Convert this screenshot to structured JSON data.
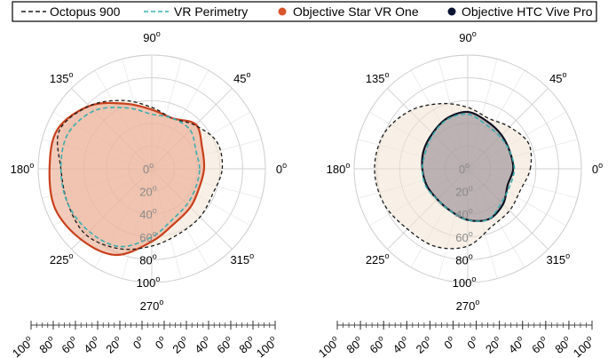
{
  "legend": {
    "items": [
      {
        "label": "Octopus 900",
        "style": "dashed",
        "color": "#1a1a1a"
      },
      {
        "label": "VR Perimetry",
        "style": "dashed",
        "color": "#3aaeb0"
      },
      {
        "label": "Objective Star VR One",
        "style": "dot",
        "color": "#d9552b"
      },
      {
        "label": "Objective HTC Vive Pro",
        "style": "dot",
        "color": "#0b1333"
      }
    ]
  },
  "colors": {
    "octopus": "#1a1a1a",
    "vr_perimetry": "#3aaeb0",
    "star_vr": "#c8401c",
    "star_vr_fill": "#e9a184",
    "htc": "#111122",
    "htc_fill": "#8a7f88",
    "octopus_fill": "#f3e4d3"
  },
  "chart_data": [
    {
      "type": "polar-area",
      "angle_labels": [
        "0",
        "45",
        "90",
        "135",
        "180",
        "225",
        "270",
        "315"
      ],
      "angle_unit_symbol": "o",
      "ring_labels": [
        "0",
        "20",
        "40",
        "60",
        "80",
        "100"
      ],
      "ring_unit_symbol": "o",
      "r_max": 100,
      "angles_deg": [
        0,
        22.5,
        45,
        67.5,
        90,
        112.5,
        135,
        157.5,
        180,
        202.5,
        225,
        247.5,
        270,
        292.5,
        315,
        337.5
      ],
      "series": [
        {
          "name": "Octopus 900",
          "r": [
            62,
            62,
            54,
            48,
            54,
            65,
            78,
            88,
            80,
            80,
            82,
            76,
            68,
            62,
            60,
            58
          ]
        },
        {
          "name": "VR Perimetry",
          "r": [
            42,
            42,
            48,
            48,
            48,
            58,
            72,
            80,
            80,
            80,
            78,
            74,
            60,
            48,
            44,
            42
          ]
        },
        {
          "name": "Objective Star VR One",
          "r": [
            46,
            48,
            55,
            48,
            52,
            62,
            78,
            90,
            90,
            92,
            88,
            82,
            64,
            52,
            48,
            45
          ]
        }
      ],
      "bottom_axis": {
        "tick_labels": [
          "100",
          "80",
          "60",
          "40",
          "20",
          "0",
          "0",
          "20",
          "40",
          "60",
          "80",
          "100"
        ],
        "unit_symbol": "o"
      }
    },
    {
      "type": "polar-area",
      "angle_labels": [
        "0",
        "45",
        "90",
        "135",
        "180",
        "225",
        "270",
        "315"
      ],
      "angle_unit_symbol": "o",
      "ring_labels": [
        "0",
        "20",
        "40",
        "60",
        "80",
        "100"
      ],
      "ring_unit_symbol": "o",
      "r_max": 100,
      "angles_deg": [
        0,
        22.5,
        45,
        67.5,
        90,
        112.5,
        135,
        157.5,
        180,
        202.5,
        225,
        247.5,
        270,
        292.5,
        315,
        337.5
      ],
      "series": [
        {
          "name": "Octopus 900",
          "r": [
            55,
            58,
            52,
            48,
            54,
            62,
            72,
            80,
            82,
            80,
            75,
            74,
            68,
            55,
            52,
            50
          ]
        },
        {
          "name": "VR Perimetry",
          "r": [
            41,
            40,
            40,
            42,
            48,
            47,
            43,
            40,
            40,
            40,
            38,
            40,
            45,
            48,
            42,
            40
          ]
        },
        {
          "name": "Objective HTC Vive Pro",
          "r": [
            40,
            40,
            42,
            45,
            50,
            48,
            44,
            42,
            40,
            39,
            38,
            40,
            45,
            48,
            44,
            38
          ]
        }
      ],
      "bottom_axis": {
        "tick_labels": [
          "100",
          "80",
          "60",
          "40",
          "20",
          "0",
          "0",
          "20",
          "40",
          "60",
          "80",
          "100"
        ],
        "unit_symbol": "o"
      }
    }
  ]
}
